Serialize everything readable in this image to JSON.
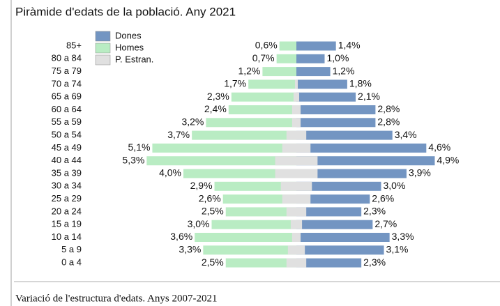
{
  "chart_data": {
    "type": "pyramid",
    "title": "Piràmide d'edats de la població. Any 2021",
    "categories": [
      "85+",
      "80 a 84",
      "75 a 79",
      "70 a 74",
      "65 a 69",
      "60 a 64",
      "55 a 59",
      "50 a 54",
      "45 a 49",
      "40 a 44",
      "35 a 39",
      "30 a 34",
      "25 a 29",
      "20 a 24",
      "15 a 19",
      "10 a 14",
      "5 a 9",
      "0 a 4"
    ],
    "series": [
      {
        "name": "Dones",
        "color": "#7395c2",
        "side": "right",
        "values": [
          1.4,
          1.0,
          1.2,
          1.8,
          2.1,
          2.8,
          2.8,
          3.4,
          4.6,
          4.9,
          3.9,
          3.0,
          2.6,
          2.3,
          2.7,
          3.3,
          3.1,
          2.3
        ],
        "value_labels": [
          "1,4%",
          "1,0%",
          "1,2%",
          "1,8%",
          "2,1%",
          "2,8%",
          "2,8%",
          "3,4%",
          "4,6%",
          "4,9%",
          "3,9%",
          "3,0%",
          "2,6%",
          "2,3%",
          "2,7%",
          "3,3%",
          "3,1%",
          "2,3%"
        ]
      },
      {
        "name": "Homes",
        "color": "#b9ecc3",
        "side": "left",
        "values": [
          0.6,
          0.7,
          1.2,
          1.7,
          2.3,
          2.4,
          3.2,
          3.7,
          5.1,
          5.3,
          4.0,
          2.9,
          2.6,
          2.5,
          3.0,
          3.6,
          3.3,
          2.5
        ],
        "value_labels": [
          "0,6%",
          "0,7%",
          "1,2%",
          "1,7%",
          "2,3%",
          "2,4%",
          "3,2%",
          "3,7%",
          "5,1%",
          "5,3%",
          "4,0%",
          "2,9%",
          "2,6%",
          "2,5%",
          "3,0%",
          "3,6%",
          "3,3%",
          "2,5%"
        ]
      },
      {
        "name": "P. Estran.",
        "color": "#e0e0e0",
        "side": "center",
        "values": [
          0,
          0,
          0,
          0.1,
          0.2,
          0.3,
          0.3,
          0.7,
          1.0,
          1.5,
          1.5,
          1.1,
          1.0,
          0.7,
          0.4,
          0.3,
          0.6,
          0.7
        ]
      }
    ]
  },
  "next_panel": {
    "title": "Variació de l'estructura d'edats. Anys 2007-2021"
  }
}
